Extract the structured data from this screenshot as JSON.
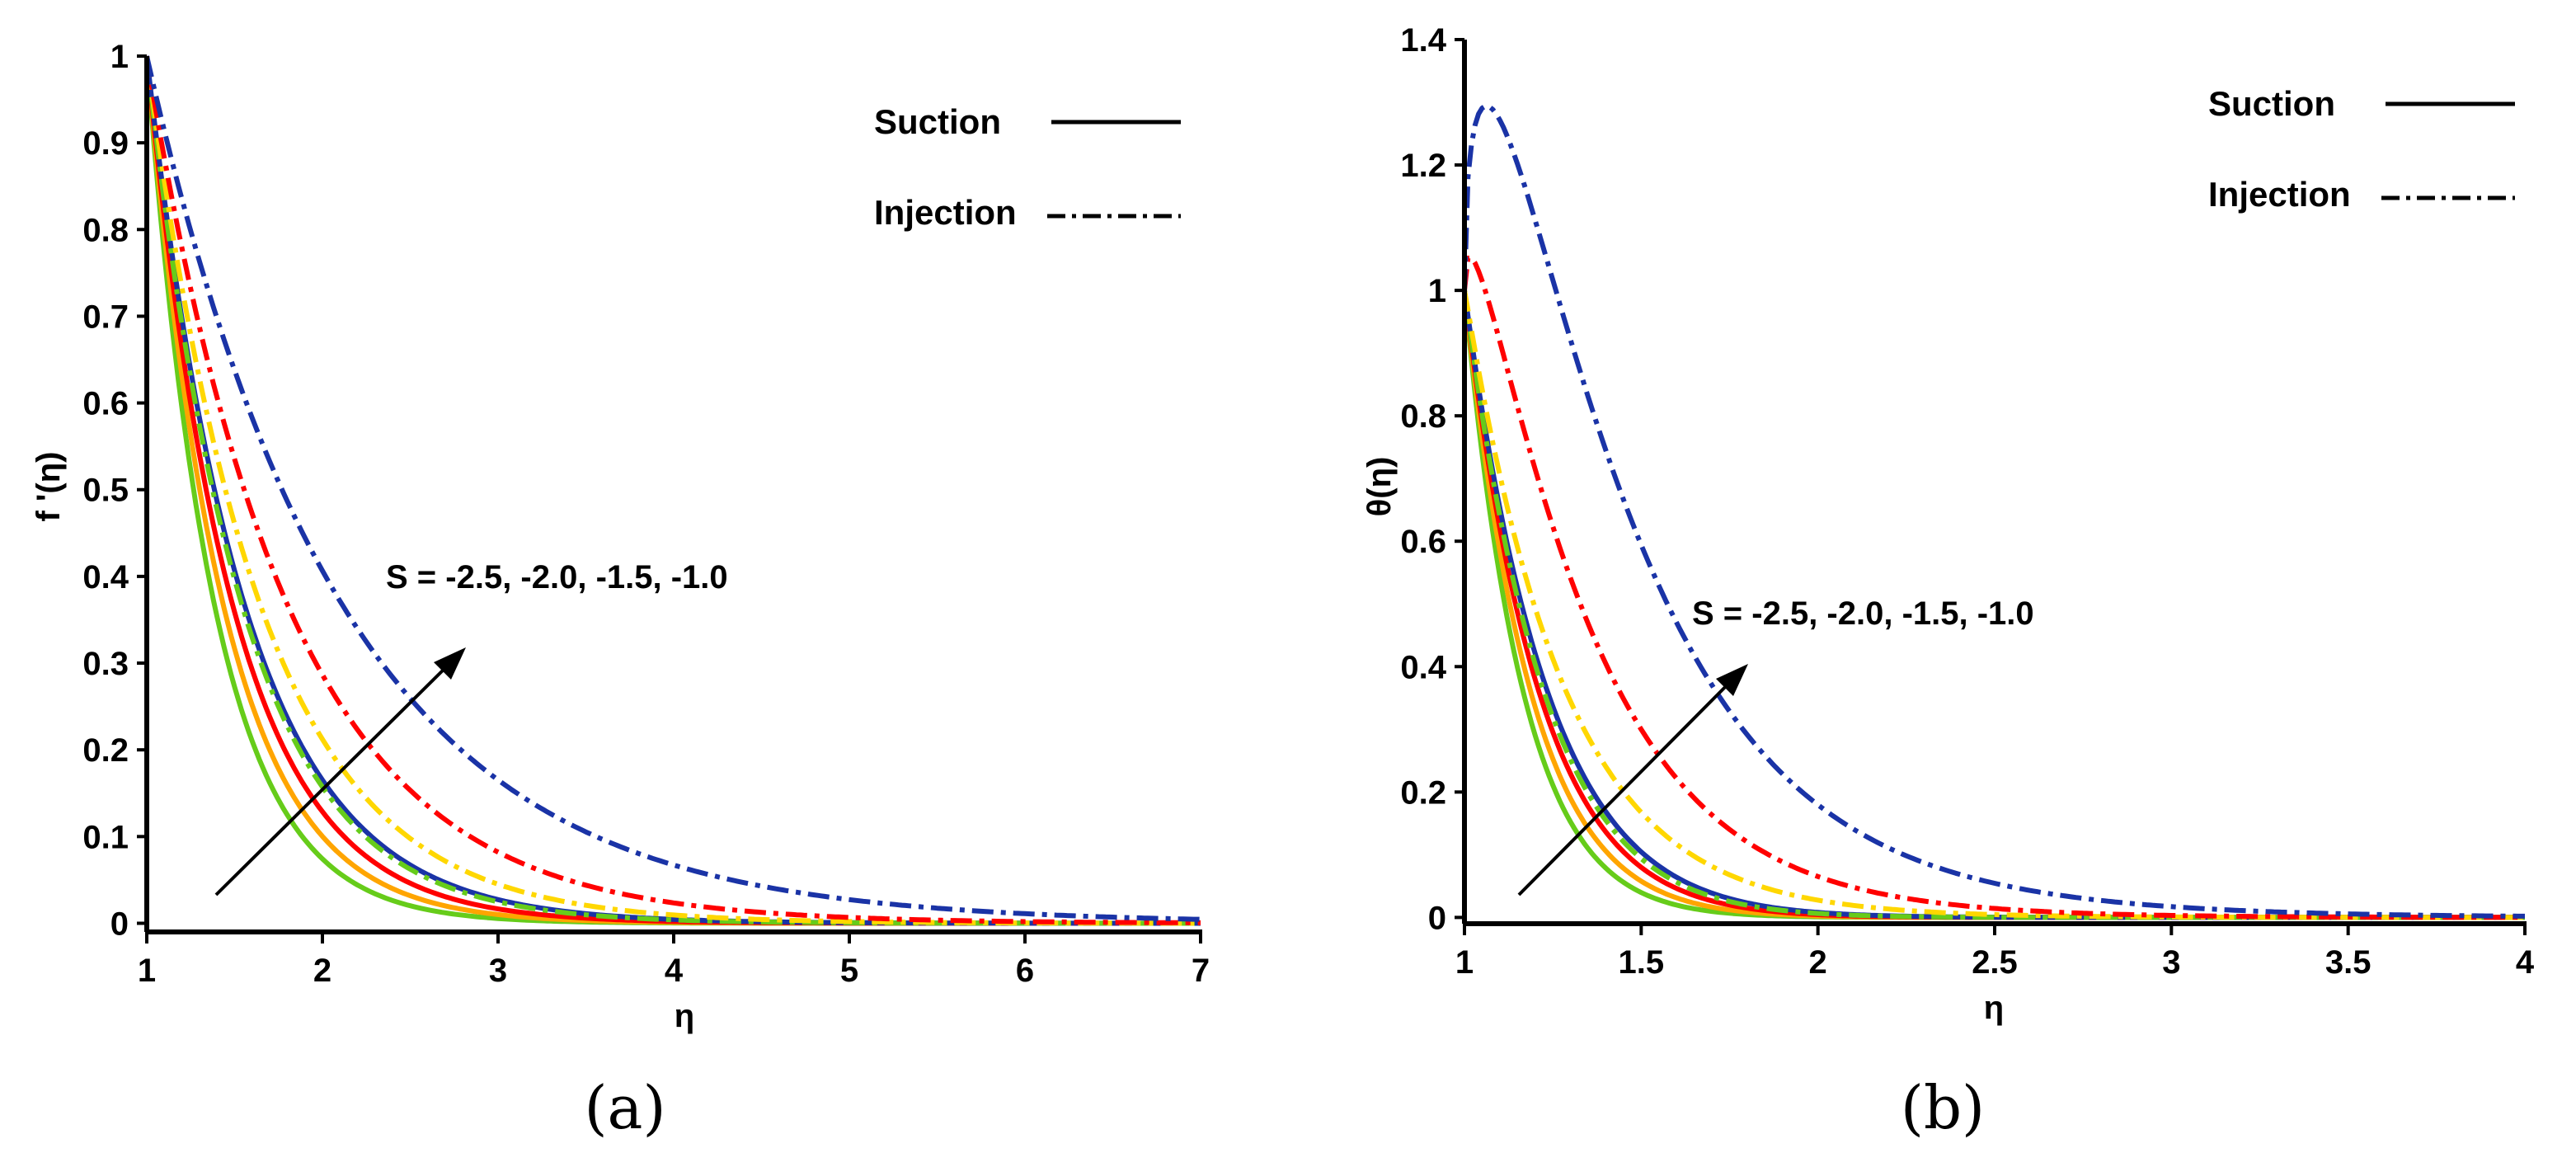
{
  "chart_data": [
    {
      "type": "line",
      "panel_label": "(a)",
      "xlabel": "η",
      "ylabel": "f '(η)",
      "xlim": [
        1,
        7
      ],
      "ylim": [
        -0.01,
        1.0
      ],
      "xticks": [
        "1",
        "2",
        "3",
        "4",
        "5",
        "6",
        "7"
      ],
      "yticks": [
        "0",
        "0.1",
        "0.2",
        "0.3",
        "0.4",
        "0.5",
        "0.6",
        "0.7",
        "0.8",
        "0.9",
        "1"
      ],
      "legend": {
        "suction": "Suction",
        "injection": "Injection"
      },
      "annotation": "S = -2.5, -2.0, -1.5, -1.0",
      "series": [
        {
          "name": "Suction S=-2.5",
          "color": "#66cc1a",
          "style": "solid",
          "decay": 2.6
        },
        {
          "name": "Suction S=-2.0",
          "color": "#ffa500",
          "style": "solid",
          "decay": 2.3
        },
        {
          "name": "Suction S=-1.5",
          "color": "#ff0000",
          "style": "solid",
          "decay": 2.05
        },
        {
          "name": "Suction S=-1.0",
          "color": "#1a33a6",
          "style": "solid",
          "decay": 1.8
        },
        {
          "name": "Injection S=-2.5",
          "color": "#66cc1a",
          "style": "dashdot",
          "decay": 1.85
        },
        {
          "name": "Injection S=-2.0",
          "color": "#ffd700",
          "style": "dashdot",
          "decay": 1.55
        },
        {
          "name": "Injection S=-1.5",
          "color": "#ff0000",
          "style": "dashdot",
          "decay": 1.25
        },
        {
          "name": "Injection S=-1.0",
          "color": "#1a33a6",
          "style": "dashdot",
          "decay": 0.9
        }
      ]
    },
    {
      "type": "line",
      "panel_label": "(b)",
      "xlabel": "η",
      "ylabel": "θ(η)",
      "xlim": [
        1,
        4
      ],
      "ylim": [
        -0.01,
        1.4
      ],
      "xticks": [
        "1",
        "1.5",
        "2",
        "2.5",
        "3",
        "3.5",
        "4"
      ],
      "yticks": [
        "0",
        "0.2",
        "0.4",
        "0.6",
        "0.8",
        "1",
        "1.2",
        "1.4"
      ],
      "legend": {
        "suction": "Suction",
        "injection": "Injection"
      },
      "annotation": "S = -2.5, -2.0, -1.5, -1.0",
      "series": [
        {
          "name": "Suction S=-2.5",
          "color": "#66cc1a",
          "style": "solid",
          "decay": 6.0,
          "peak": 0
        },
        {
          "name": "Suction S=-2.0",
          "color": "#ffa500",
          "style": "solid",
          "decay": 5.3,
          "peak": 0
        },
        {
          "name": "Suction S=-1.5",
          "color": "#ff0000",
          "style": "solid",
          "decay": 4.7,
          "peak": 0
        },
        {
          "name": "Suction S=-1.0",
          "color": "#1a33a6",
          "style": "solid",
          "decay": 4.2,
          "peak": 0
        },
        {
          "name": "Injection S=-2.5",
          "color": "#66cc1a",
          "style": "dashdot",
          "decay": 4.4,
          "peak": 0
        },
        {
          "name": "Injection S=-2.0",
          "color": "#ffd700",
          "style": "dashdot",
          "decay": 3.6,
          "peak": 0.01
        },
        {
          "name": "Injection S=-1.5",
          "color": "#ff0000",
          "style": "dashdot",
          "decay": 2.9,
          "peak": 0.2
        },
        {
          "name": "Injection S=-1.0",
          "color": "#1a33a6",
          "style": "dashdot",
          "decay": 2.1,
          "peak": 0.5
        }
      ]
    }
  ]
}
